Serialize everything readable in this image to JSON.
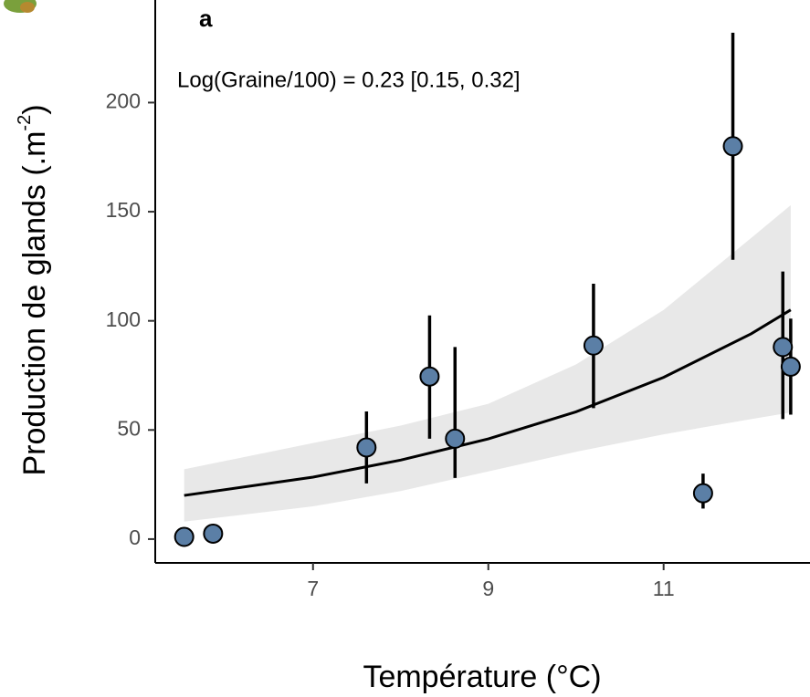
{
  "chart_data": {
    "type": "scatter",
    "panel_label": "a",
    "annotation": "Log(Graine/100) =  0.23 [0.15, 0.32]",
    "xlabel": "Température (°C)",
    "ylabel_parts": [
      "Production de glands (.m",
      "-2",
      ")"
    ],
    "xlim": [
      5.2,
      12.67
    ],
    "ylim": [
      -10.9,
      247
    ],
    "xticks": [
      7,
      9,
      11
    ],
    "yticks": [
      0,
      50,
      100,
      150,
      200
    ],
    "point_color": "#5b7fa6",
    "line_color": "#000000",
    "band_color": "#e8e8e8",
    "series": [
      {
        "x": [
          5.53,
          5.86,
          7.61,
          8.33,
          8.62,
          10.2,
          11.45,
          11.79,
          12.36,
          12.45
        ],
        "values": [
          1,
          2.5,
          42,
          74.5,
          46,
          88.7,
          21,
          180,
          88,
          79
        ],
        "err_low": [
          0,
          1,
          25.5,
          46,
          28,
          60,
          14,
          128,
          55,
          57
        ],
        "err_high": [
          2,
          4,
          58.5,
          102.5,
          88,
          117,
          30,
          232,
          122.6,
          101
        ]
      }
    ],
    "fit": {
      "x": [
        5.53,
        7,
        8,
        9,
        10,
        11,
        12,
        12.45
      ],
      "values": [
        20,
        28.4,
        36.2,
        45.9,
        58.3,
        74.1,
        94.1,
        105
      ],
      "lower": [
        8,
        15,
        22,
        31,
        40,
        48,
        55,
        58
      ],
      "upper": [
        32,
        44,
        52,
        62,
        80,
        105,
        138,
        153
      ]
    }
  }
}
